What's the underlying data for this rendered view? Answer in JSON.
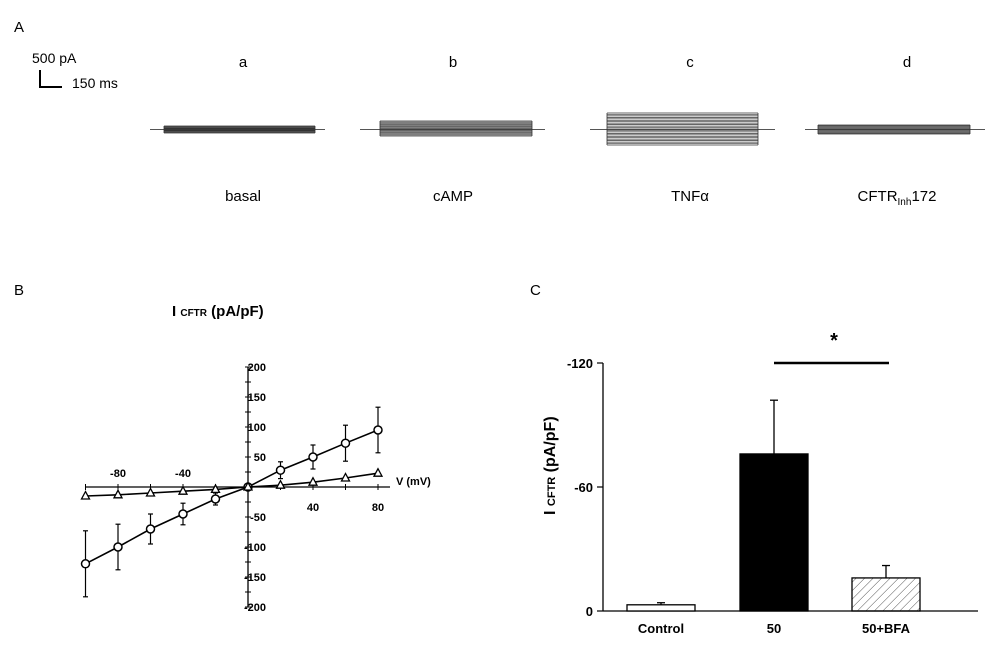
{
  "panel_labels": {
    "a": "A",
    "b": "B",
    "c": "C"
  },
  "scale_bar": {
    "current": "500 pA",
    "time": "150 ms"
  },
  "traces": [
    {
      "letter": "a",
      "condition": "basal",
      "condition_sub": "",
      "condition_suffix": ""
    },
    {
      "letter": "b",
      "condition": "cAMP",
      "condition_sub": "",
      "condition_suffix": ""
    },
    {
      "letter": "c",
      "condition": "TNFα",
      "condition_sub": "",
      "condition_suffix": ""
    },
    {
      "letter": "d",
      "condition": "CFTR",
      "condition_sub": "Inh",
      "condition_suffix": "172"
    }
  ],
  "chart_data": [
    {
      "type": "line",
      "title_main": "I",
      "title_sub": "CFTR",
      "title_rest": " (pA/pF)",
      "xlabel": "V (mV)",
      "ylabel": "",
      "xlim": [
        -100,
        80
      ],
      "ylim": [
        -200,
        200
      ],
      "xticks": [
        -80,
        -40,
        40,
        80
      ],
      "yticks": [
        -200,
        -150,
        -100,
        -50,
        50,
        100,
        150,
        200
      ],
      "x": [
        -100,
        -80,
        -60,
        -40,
        -20,
        0,
        20,
        40,
        60,
        80
      ],
      "series": [
        {
          "marker": "circle",
          "values": [
            -128,
            -100,
            -70,
            -45,
            -20,
            0,
            28,
            50,
            73,
            95
          ],
          "errors": [
            55,
            38,
            25,
            18,
            10,
            0,
            14,
            20,
            30,
            38
          ]
        },
        {
          "marker": "triangle",
          "values": [
            -15,
            -13,
            -10,
            -7,
            -4,
            0,
            3,
            8,
            15,
            23
          ],
          "errors": [
            0,
            0,
            0,
            0,
            0,
            0,
            0,
            0,
            0,
            0
          ]
        }
      ]
    },
    {
      "type": "bar",
      "categories": [
        "Control",
        "50",
        "50+BFA"
      ],
      "values": [
        -3,
        -76,
        -16
      ],
      "errors": [
        1,
        26,
        6
      ],
      "bar_fills": [
        "#ffffff",
        "#000000",
        "hatch"
      ],
      "ylabel_main": "I",
      "ylabel_sub": "CFTR",
      "ylabel_rest": " (pA/pF)",
      "yticks": [
        0,
        -60,
        -120
      ],
      "ylim": [
        0,
        -120
      ],
      "significance": {
        "label": "*",
        "from": "50",
        "to": "50+BFA"
      }
    }
  ]
}
